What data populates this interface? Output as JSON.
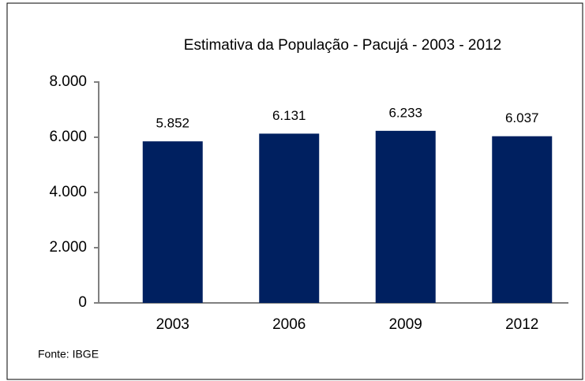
{
  "chart_data": {
    "type": "bar",
    "title": "Estimativa da População - Pacujá - 2003 - 2012",
    "categories": [
      "2003",
      "2006",
      "2009",
      "2012"
    ],
    "values": [
      5852,
      6131,
      6233,
      6037
    ],
    "value_labels": [
      "5.852",
      "6.131",
      "6.233",
      "6.037"
    ],
    "color": "#002060",
    "ylim": [
      0,
      8000
    ],
    "yticks": [
      0,
      {
        "value": 2000,
        "label": "2.000"
      },
      {
        "value": 4000,
        "label": "4.000"
      },
      {
        "value": 6000,
        "label": "6.000"
      },
      {
        "value": 8000,
        "label": "8.000"
      }
    ],
    "grid": false,
    "source": "Fonte: IBGE"
  }
}
